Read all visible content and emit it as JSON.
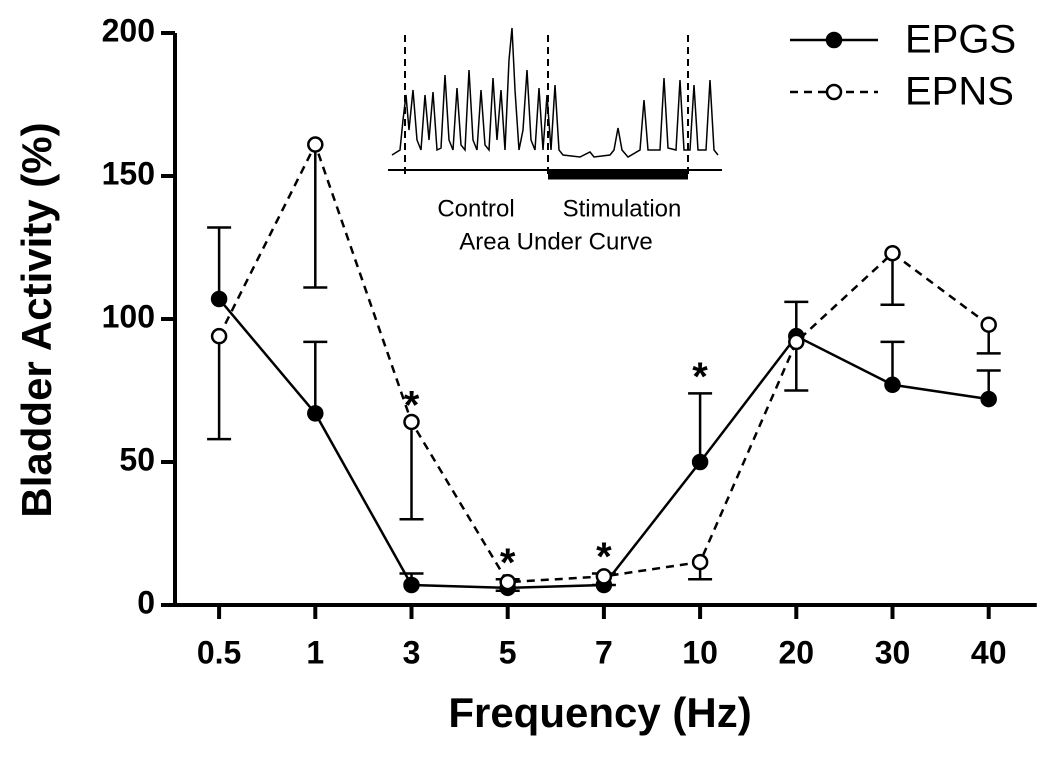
{
  "chart_data": {
    "type": "line",
    "xlabel": "Frequency (Hz)",
    "ylabel": "Bladder Activity (%)",
    "categories": [
      "0.5",
      "1",
      "3",
      "5",
      "7",
      "10",
      "20",
      "30",
      "40"
    ],
    "ylim": [
      0,
      200
    ],
    "yticks": [
      0,
      50,
      100,
      150,
      200
    ],
    "legend": "upper right",
    "series": [
      {
        "name": "EPGS",
        "color": "#000000",
        "marker": "filled",
        "line_style": "solid",
        "error_direction": "up",
        "values": [
          107,
          67,
          7,
          6,
          7,
          50,
          94,
          77,
          72
        ],
        "errors": [
          25,
          25,
          4,
          3,
          4,
          24,
          12,
          15,
          10
        ]
      },
      {
        "name": "EPNS",
        "color": "#000000",
        "marker": "open",
        "line_style": "dashed",
        "error_direction": "down",
        "values": [
          94,
          161,
          64,
          8,
          10,
          15,
          92,
          123,
          98
        ],
        "errors": [
          36,
          50,
          34,
          3,
          3,
          6,
          17,
          18,
          10
        ]
      }
    ],
    "annotations": [
      {
        "text": "*",
        "category": "3"
      },
      {
        "text": "*",
        "category": "5"
      },
      {
        "text": "*",
        "category": "7"
      },
      {
        "text": "*",
        "category": "10"
      }
    ],
    "inset": {
      "labels": [
        "Control",
        "Stimulation",
        "Area Under Curve"
      ]
    }
  }
}
